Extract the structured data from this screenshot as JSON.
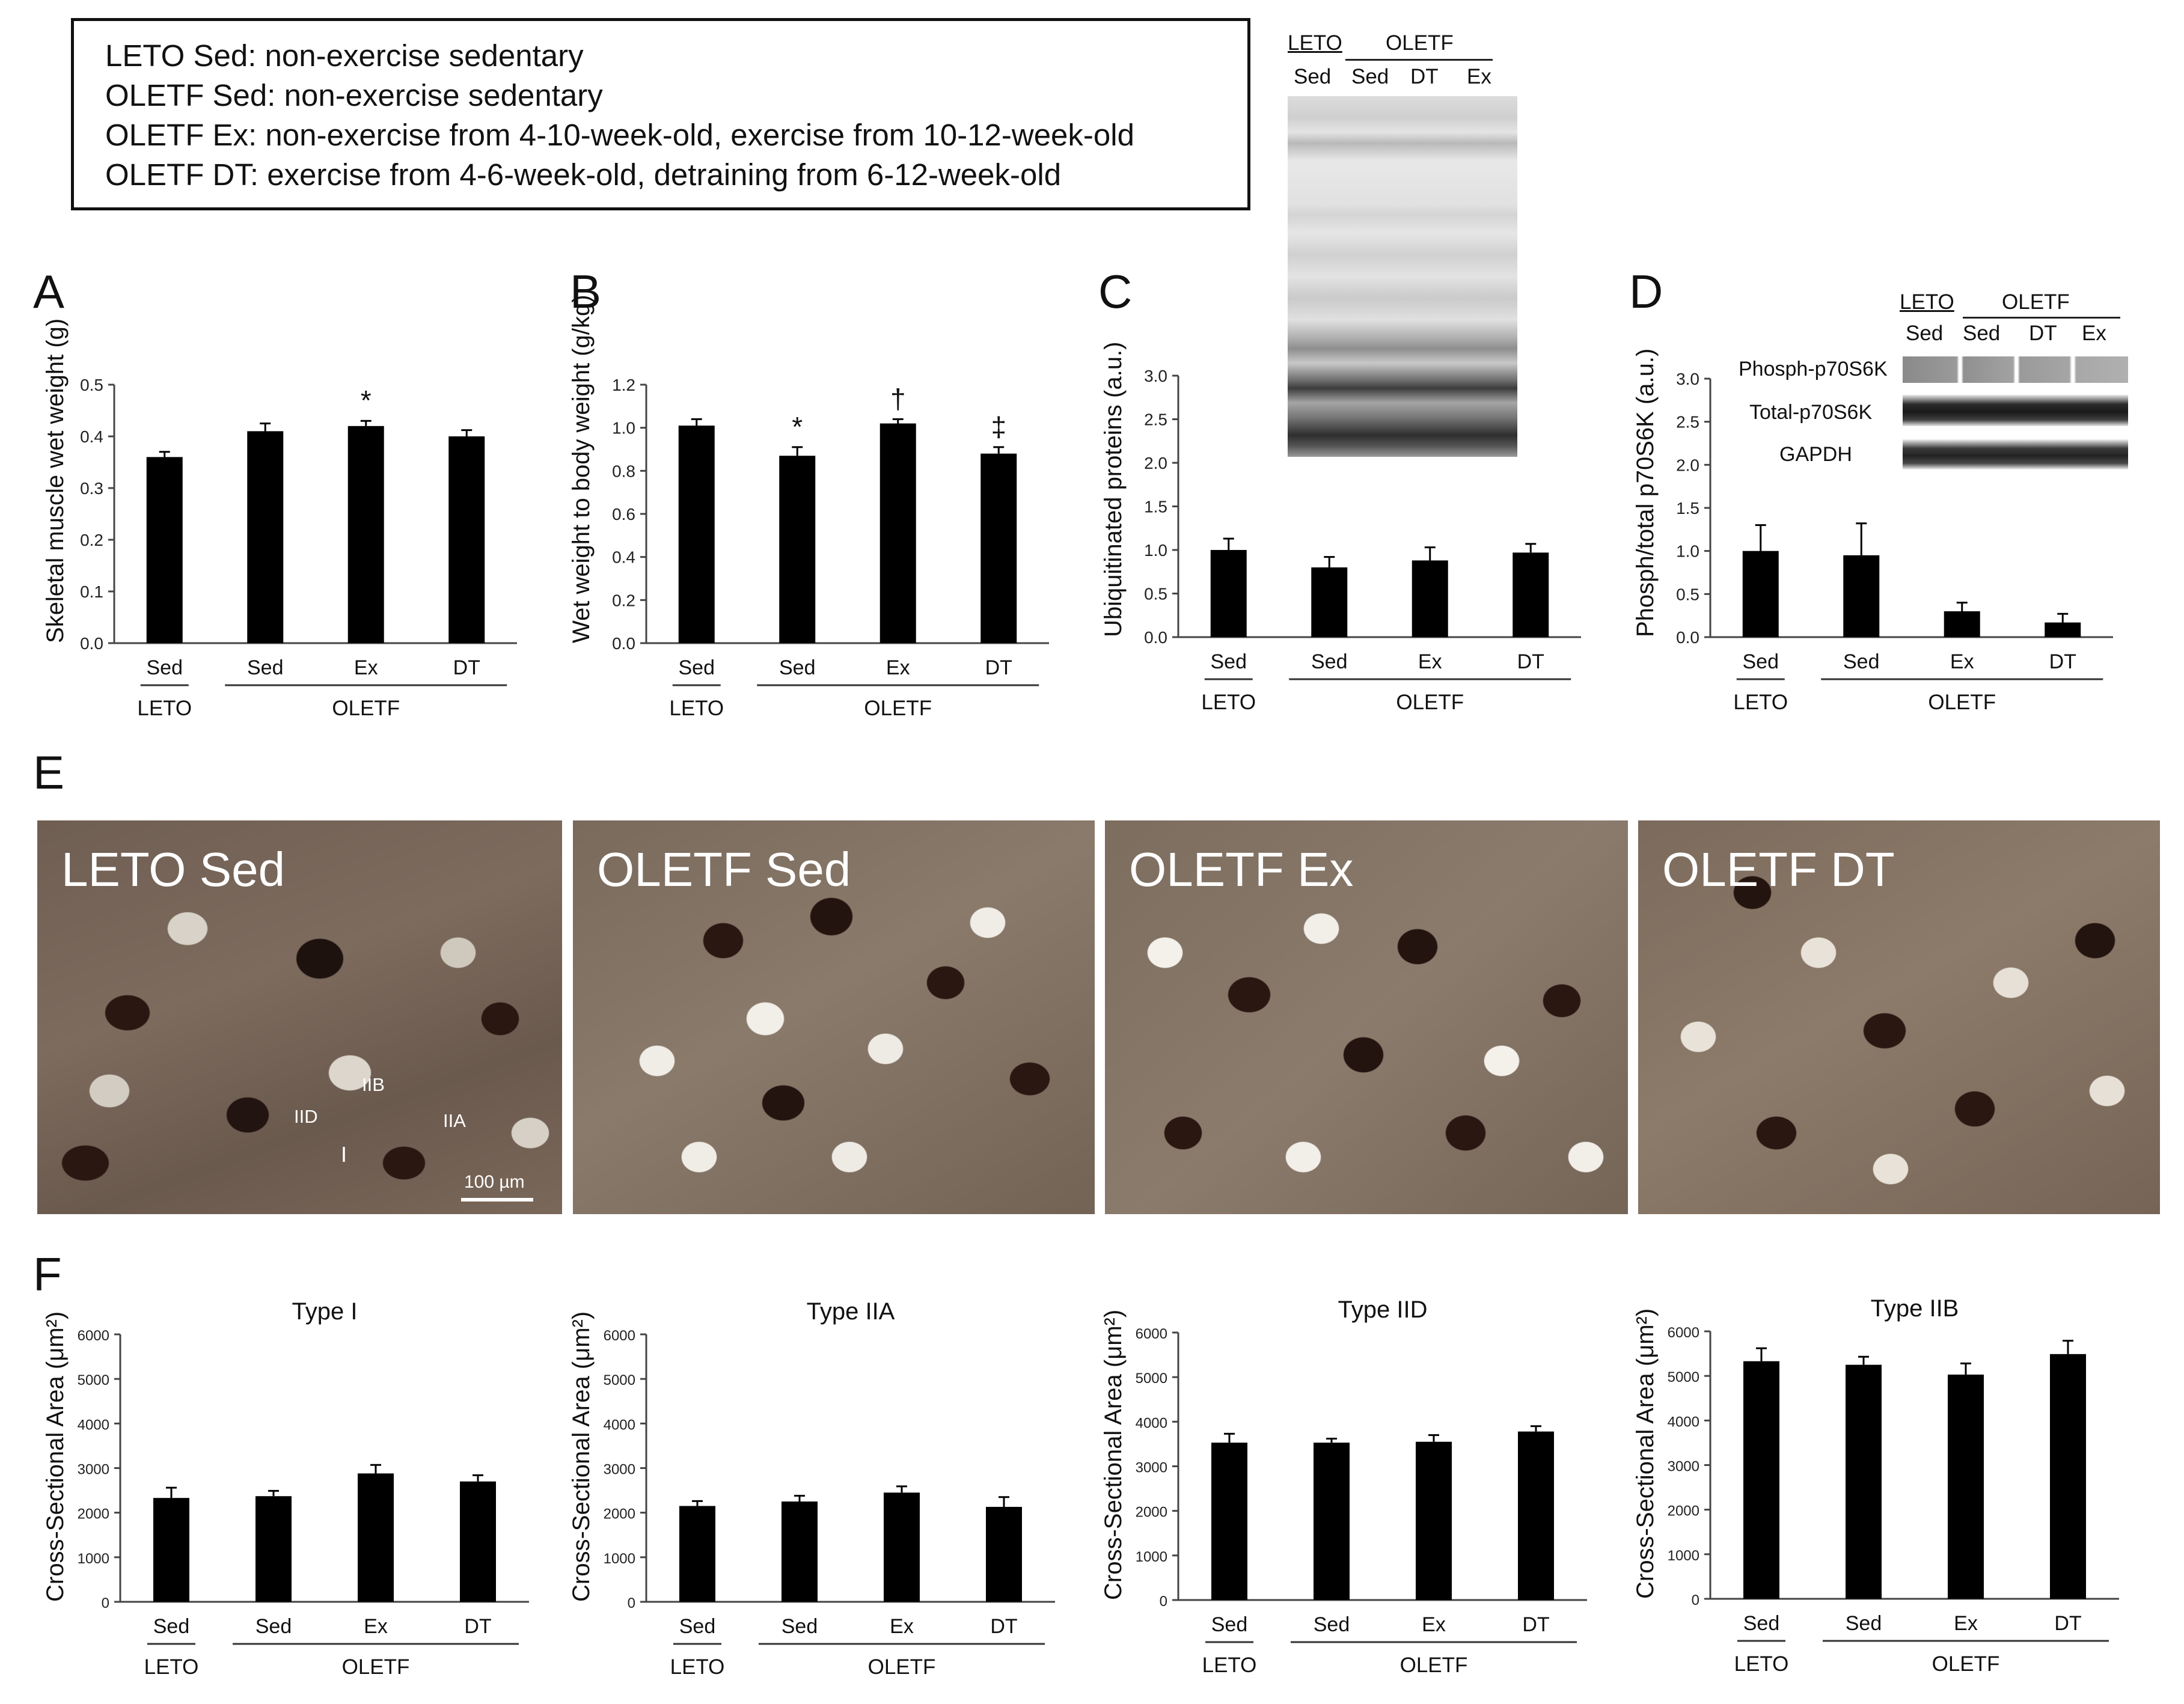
{
  "legend": [
    "LETO Sed: non-exercise sedentary",
    "OLETF Sed: non-exercise sedentary",
    "OLETF Ex: non-exercise from 4-10-week-old, exercise from 10-12-week-old",
    "OLETF DT: exercise from 4-6-week-old, detraining from 6-12-week-old"
  ],
  "panel_labels": {
    "A": "A",
    "B": "B",
    "C": "C",
    "D": "D",
    "E": "E",
    "F": "F"
  },
  "groups": {
    "leto": "LETO",
    "oletf": "OLETF"
  },
  "blot_c": {
    "header_leto": "LETO",
    "header_oletf": "OLETF",
    "lanes": [
      "Sed",
      "Sed",
      "DT",
      "Ex"
    ]
  },
  "blot_d": {
    "header_leto": "LETO",
    "header_oletf": "OLETF",
    "lanes": [
      "Sed",
      "Sed",
      "DT",
      "Ex"
    ],
    "rows": [
      "Phosph-p70S6K",
      "Total-p70S6K",
      "GAPDH"
    ]
  },
  "histology": {
    "panels": [
      "LETO Sed",
      "OLETF Sed",
      "OLETF Ex",
      "OLETF DT"
    ],
    "fiber_labels": [
      "IID",
      "IIB",
      "IIA",
      "I"
    ],
    "scale_bar": "100 µm"
  },
  "chart_data": [
    {
      "id": "A",
      "type": "bar",
      "categories": [
        "Sed",
        "Sed",
        "Ex",
        "DT"
      ],
      "values": [
        0.36,
        0.41,
        0.42,
        0.4
      ],
      "errors": [
        0.01,
        0.015,
        0.01,
        0.012
      ],
      "marks": [
        "",
        "",
        "*",
        ""
      ],
      "ylabel": "Skeletal muscle wet weight (g)",
      "ylim": [
        0,
        0.5
      ],
      "ticks": [
        "0.0",
        "0.1",
        "0.2",
        "0.3",
        "0.4",
        "0.5"
      ]
    },
    {
      "id": "B",
      "type": "bar",
      "categories": [
        "Sed",
        "Sed",
        "Ex",
        "DT"
      ],
      "values": [
        1.01,
        0.87,
        1.02,
        0.88
      ],
      "errors": [
        0.03,
        0.04,
        0.02,
        0.03
      ],
      "marks": [
        "",
        "*",
        "†",
        "‡"
      ],
      "ylabel": "Wet weight to body weight (g/kg)",
      "ylim": [
        0,
        1.2
      ],
      "ticks": [
        "0.0",
        "0.2",
        "0.4",
        "0.6",
        "0.8",
        "1.0",
        "1.2"
      ]
    },
    {
      "id": "C",
      "type": "bar",
      "categories": [
        "Sed",
        "Sed",
        "Ex",
        "DT"
      ],
      "values": [
        1.0,
        0.8,
        0.88,
        0.97
      ],
      "errors": [
        0.13,
        0.12,
        0.15,
        0.1
      ],
      "marks": [
        "",
        "",
        "",
        ""
      ],
      "ylabel": "Ubiquitinated proteins (a.u.)",
      "ylim": [
        0,
        3.0
      ],
      "ticks": [
        "0.0",
        "0.5",
        "1.0",
        "1.5",
        "2.0",
        "2.5",
        "3.0"
      ]
    },
    {
      "id": "D",
      "type": "bar",
      "categories": [
        "Sed",
        "Sed",
        "Ex",
        "DT"
      ],
      "values": [
        1.0,
        0.95,
        0.3,
        0.17
      ],
      "errors": [
        0.3,
        0.37,
        0.1,
        0.1
      ],
      "marks": [
        "",
        "",
        "",
        ""
      ],
      "ylabel": "Phosph/total p70S6K (a.u.)",
      "ylim": [
        0,
        3.0
      ],
      "ticks": [
        "0.0",
        "0.5",
        "1.0",
        "1.5",
        "2.0",
        "2.5",
        "3.0"
      ]
    },
    {
      "id": "F1",
      "type": "bar",
      "title": "Type I",
      "categories": [
        "Sed",
        "Sed",
        "Ex",
        "DT"
      ],
      "values": [
        2330,
        2370,
        2880,
        2700
      ],
      "errors": [
        230,
        120,
        190,
        140
      ],
      "marks": [
        "",
        "",
        "",
        ""
      ],
      "ylabel": "Cross-Sectional Area (μm²)",
      "ylim": [
        0,
        6000
      ],
      "ticks": [
        "0",
        "1000",
        "2000",
        "3000",
        "4000",
        "5000",
        "6000"
      ]
    },
    {
      "id": "F2",
      "type": "bar",
      "title": "Type IIA",
      "categories": [
        "Sed",
        "Sed",
        "Ex",
        "DT"
      ],
      "values": [
        2150,
        2250,
        2450,
        2130
      ],
      "errors": [
        110,
        130,
        140,
        220
      ],
      "marks": [
        "",
        "",
        "",
        ""
      ],
      "ylabel": "Cross-Sectional Area (μm²)",
      "ylim": [
        0,
        6000
      ],
      "ticks": [
        "0",
        "1000",
        "2000",
        "3000",
        "4000",
        "5000",
        "6000"
      ]
    },
    {
      "id": "F3",
      "type": "bar",
      "title": "Type IID",
      "categories": [
        "Sed",
        "Sed",
        "Ex",
        "DT"
      ],
      "values": [
        3530,
        3530,
        3550,
        3780
      ],
      "errors": [
        200,
        90,
        150,
        120
      ],
      "marks": [
        "",
        "",
        "",
        ""
      ],
      "ylabel": "Cross-Sectional Area (μm²)",
      "ylim": [
        0,
        6000
      ],
      "ticks": [
        "0",
        "1000",
        "2000",
        "3000",
        "4000",
        "5000",
        "6000"
      ]
    },
    {
      "id": "F4",
      "type": "bar",
      "title": "Type IIB",
      "categories": [
        "Sed",
        "Sed",
        "Ex",
        "DT"
      ],
      "values": [
        5330,
        5250,
        5030,
        5490
      ],
      "errors": [
        290,
        180,
        250,
        300
      ],
      "marks": [
        "",
        "",
        "",
        ""
      ],
      "ylabel": "Cross-Sectional Area (μm²)",
      "ylim": [
        0,
        6000
      ],
      "ticks": [
        "0",
        "1000",
        "2000",
        "3000",
        "4000",
        "5000",
        "6000"
      ]
    }
  ]
}
